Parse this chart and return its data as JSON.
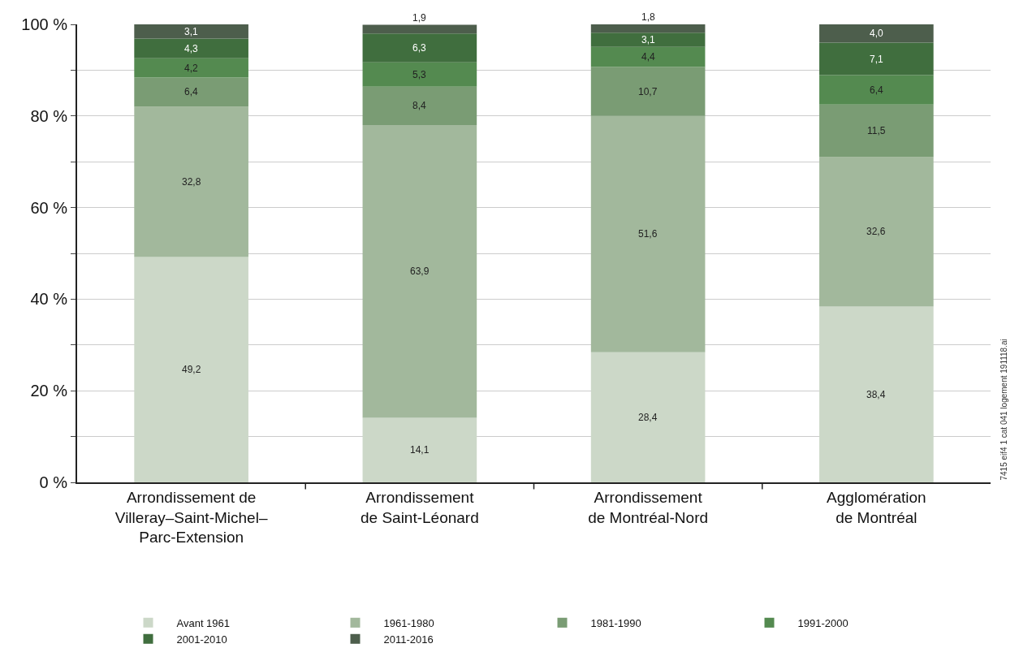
{
  "chart_data": {
    "type": "bar",
    "stacked": true,
    "categories": [
      "Arrondissement de\nVilleray–Saint-Michel–\nParc-Extension",
      "Arrondissement\nde Saint-Léonard",
      "Arrondissement\nde Montréal-Nord",
      "Agglomération\nde Montréal"
    ],
    "series": [
      {
        "name": "Avant 1961",
        "color": "#ccd8c8",
        "values": [
          49.2,
          14.1,
          28.4,
          38.4
        ],
        "value_labels": [
          "49,2",
          "14,1",
          "28,4",
          "38,4"
        ]
      },
      {
        "name": "1961-1980",
        "color": "#a2b89c",
        "values": [
          32.8,
          63.9,
          51.6,
          32.6
        ],
        "value_labels": [
          "32,8",
          "63,9",
          "51,6",
          "32,6"
        ]
      },
      {
        "name": "1981-1990",
        "color": "#7a9c74",
        "values": [
          6.4,
          8.4,
          10.7,
          11.5
        ],
        "value_labels": [
          "6,4",
          "8,4",
          "10,7",
          "11,5"
        ]
      },
      {
        "name": "1991-2000",
        "color": "#548a50",
        "values": [
          4.2,
          5.3,
          4.4,
          6.4
        ],
        "value_labels": [
          "4,2",
          "5,3",
          "4,4",
          "6,4"
        ]
      },
      {
        "name": "2001-2010",
        "color": "#406e3e",
        "values": [
          4.3,
          6.3,
          3.1,
          7.1
        ],
        "value_labels": [
          "4,3",
          "6,3",
          "3,1",
          "7,1"
        ]
      },
      {
        "name": "2011-2016",
        "color": "#4d5e4c",
        "values": [
          3.1,
          1.9,
          1.8,
          4.0
        ],
        "value_labels": [
          "3,1",
          "1,9",
          "1,8",
          "4,0"
        ]
      }
    ],
    "ylim": [
      0,
      100
    ],
    "yticks": [
      {
        "value": 0,
        "label": "0 %"
      },
      {
        "value": 10,
        "label": null
      },
      {
        "value": 20,
        "label": "20 %"
      },
      {
        "value": 30,
        "label": null
      },
      {
        "value": 40,
        "label": "40 %"
      },
      {
        "value": 50,
        "label": null
      },
      {
        "value": 60,
        "label": "60 %"
      },
      {
        "value": 70,
        "label": null
      },
      {
        "value": 80,
        "label": "80 %"
      },
      {
        "value": 90,
        "label": null
      },
      {
        "value": 100,
        "label": "100 %"
      }
    ],
    "grid": "y",
    "legend": "bottom",
    "annotations": [
      "7415 eif4 1 cat 041 logement 191118.ai"
    ]
  }
}
